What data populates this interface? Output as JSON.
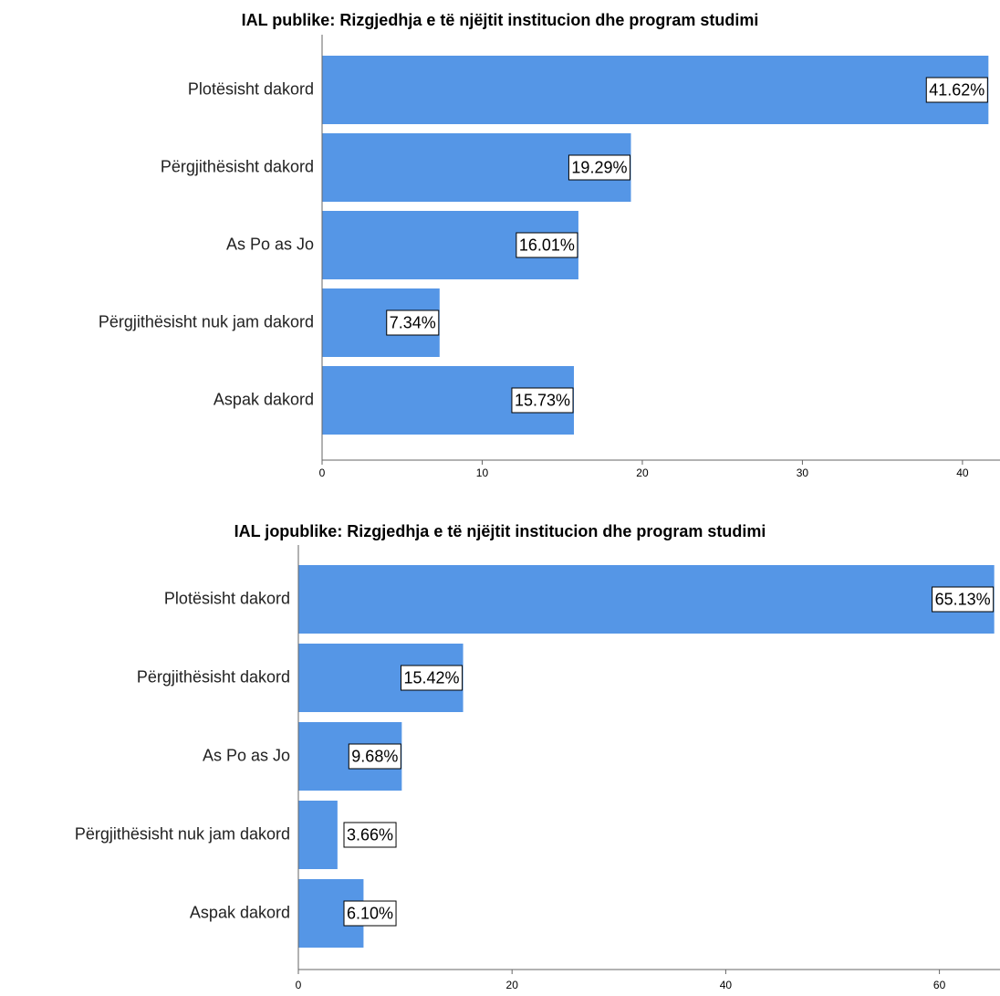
{
  "chart_data": [
    {
      "type": "bar",
      "orientation": "horizontal",
      "title": "IAL publike: Rizgjedhja e të njëjtit institucion dhe program studimi",
      "categories": [
        "Plotësisht dakord",
        "Përgjithësisht dakord",
        "As Po as Jo",
        "Përgjithësisht nuk jam dakord",
        "Aspak dakord"
      ],
      "values": [
        41.62,
        19.29,
        16.01,
        7.34,
        15.73
      ],
      "value_labels": [
        "41.62%",
        "19.29%",
        "16.01%",
        "7.34%",
        "15.73%"
      ],
      "xlim": [
        0,
        42
      ],
      "xticks": [
        0,
        10,
        20,
        30,
        40
      ],
      "bar_color": "#5596e6",
      "grid": false,
      "legend": "none"
    },
    {
      "type": "bar",
      "orientation": "horizontal",
      "title": "IAL jopublike: Rizgjedhja e të njëjtit institucion dhe program studimi",
      "categories": [
        "Plotësisht dakord",
        "Përgjithësisht dakord",
        "As Po as Jo",
        "Përgjithësisht nuk jam dakord",
        "Aspak dakord"
      ],
      "values": [
        65.13,
        15.42,
        9.68,
        3.66,
        6.1
      ],
      "value_labels": [
        "65.13%",
        "15.42%",
        "9.68%",
        "3.66%",
        "6.10%"
      ],
      "xlim": [
        0,
        65.5
      ],
      "xticks": [
        0,
        20,
        40,
        60
      ],
      "bar_color": "#5596e6",
      "grid": false,
      "legend": "none"
    }
  ]
}
